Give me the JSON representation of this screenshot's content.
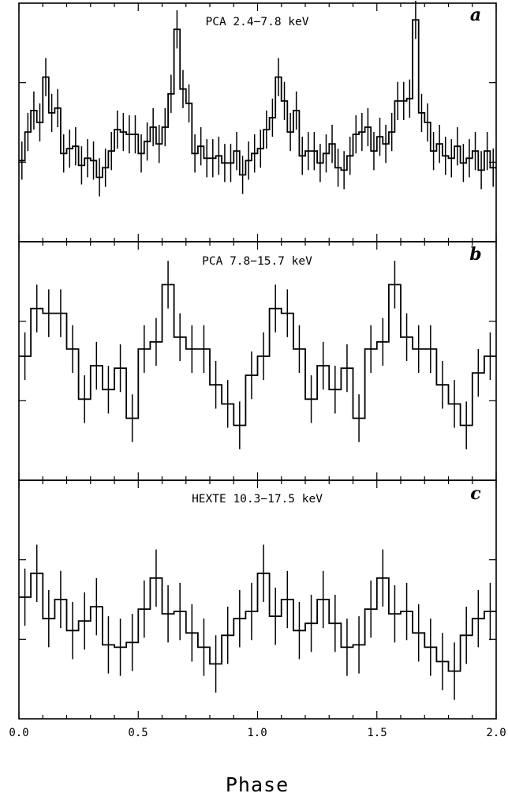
{
  "chart_data": [
    {
      "type": "line",
      "panel_letter": "a",
      "title": "PCA 2.4−7.8 keV",
      "xlim": [
        0.0,
        2.0
      ],
      "ylim": [
        0.0,
        1.0
      ],
      "bin_width": 0.025,
      "x": [
        0.0125,
        0.0375,
        0.0625,
        0.0875,
        0.1125,
        0.1375,
        0.1625,
        0.1875,
        0.2125,
        0.2375,
        0.2625,
        0.2875,
        0.3125,
        0.3375,
        0.3625,
        0.3875,
        0.4125,
        0.4375,
        0.4625,
        0.4875,
        0.5125,
        0.5375,
        0.5625,
        0.5875,
        0.6125,
        0.6375,
        0.6625,
        0.6875,
        0.7125,
        0.7375,
        0.7625,
        0.7875,
        0.8125,
        0.8375,
        0.8625,
        0.8875,
        0.9125,
        0.9375,
        0.9625,
        0.9875,
        1.0125,
        1.0375,
        1.0625,
        1.0875,
        1.1125,
        1.1375,
        1.1625,
        1.1875,
        1.2125,
        1.2375,
        1.2625,
        1.2875,
        1.3125,
        1.3375,
        1.3625,
        1.3875,
        1.4125,
        1.4375,
        1.4625,
        1.4875,
        1.5125,
        1.5375,
        1.5625,
        1.5875,
        1.6125,
        1.6375,
        1.6625,
        1.6875,
        1.7125,
        1.7375,
        1.7625,
        1.7875,
        1.8125,
        1.8375,
        1.8625,
        1.8875,
        1.9125,
        1.9375,
        1.9625,
        1.9875
      ],
      "y": [
        0.34,
        0.46,
        0.55,
        0.5,
        0.69,
        0.54,
        0.56,
        0.37,
        0.39,
        0.4,
        0.32,
        0.35,
        0.34,
        0.27,
        0.31,
        0.38,
        0.47,
        0.46,
        0.45,
        0.45,
        0.37,
        0.42,
        0.48,
        0.41,
        0.48,
        0.62,
        0.89,
        0.64,
        0.58,
        0.37,
        0.4,
        0.35,
        0.35,
        0.36,
        0.33,
        0.33,
        0.38,
        0.28,
        0.34,
        0.37,
        0.39,
        0.47,
        0.52,
        0.69,
        0.59,
        0.46,
        0.55,
        0.36,
        0.38,
        0.38,
        0.33,
        0.37,
        0.41,
        0.31,
        0.3,
        0.36,
        0.45,
        0.46,
        0.48,
        0.38,
        0.44,
        0.41,
        0.46,
        0.59,
        0.59,
        0.6,
        0.93,
        0.54,
        0.5,
        0.38,
        0.41,
        0.36,
        0.35,
        0.4,
        0.33,
        0.35,
        0.38,
        0.3,
        0.38,
        0.31
      ],
      "yerr": [
        0.08,
        0.08,
        0.08,
        0.08,
        0.08,
        0.08,
        0.08,
        0.08,
        0.08,
        0.08,
        0.08,
        0.08,
        0.08,
        0.08,
        0.08,
        0.08,
        0.08,
        0.08,
        0.08,
        0.08,
        0.08,
        0.08,
        0.08,
        0.08,
        0.08,
        0.08,
        0.08,
        0.08,
        0.08,
        0.08,
        0.08,
        0.08,
        0.08,
        0.08,
        0.08,
        0.08,
        0.08,
        0.08,
        0.08,
        0.08,
        0.08,
        0.08,
        0.08,
        0.08,
        0.08,
        0.08,
        0.08,
        0.08,
        0.08,
        0.08,
        0.08,
        0.08,
        0.08,
        0.08,
        0.08,
        0.08,
        0.08,
        0.08,
        0.08,
        0.08,
        0.08,
        0.08,
        0.08,
        0.08,
        0.08,
        0.08,
        0.08,
        0.08,
        0.08,
        0.08,
        0.08,
        0.08,
        0.08,
        0.08,
        0.08,
        0.08,
        0.08,
        0.08,
        0.08,
        0.08
      ]
    },
    {
      "type": "line",
      "panel_letter": "b",
      "title": "PCA 7.8−15.7 keV",
      "xlim": [
        0.0,
        2.0
      ],
      "ylim": [
        0.0,
        1.0
      ],
      "bin_width": 0.05,
      "x": [
        0.025,
        0.075,
        0.125,
        0.175,
        0.225,
        0.275,
        0.325,
        0.375,
        0.425,
        0.475,
        0.525,
        0.575,
        0.625,
        0.675,
        0.725,
        0.775,
        0.825,
        0.875,
        0.925,
        0.975,
        1.025,
        1.075,
        1.125,
        1.175,
        1.225,
        1.275,
        1.325,
        1.375,
        1.425,
        1.475,
        1.525,
        1.575,
        1.625,
        1.675,
        1.725,
        1.775,
        1.825,
        1.875,
        1.925,
        1.975
      ],
      "y": [
        0.52,
        0.72,
        0.7,
        0.7,
        0.55,
        0.34,
        0.48,
        0.38,
        0.47,
        0.26,
        0.55,
        0.58,
        0.82,
        0.6,
        0.55,
        0.55,
        0.4,
        0.32,
        0.23,
        0.44,
        0.52,
        0.72,
        0.7,
        0.55,
        0.34,
        0.48,
        0.38,
        0.47,
        0.26,
        0.55,
        0.58,
        0.82,
        0.6,
        0.55,
        0.55,
        0.4,
        0.32,
        0.23,
        0.45,
        0.52
      ],
      "yerr": [
        0.1,
        0.1,
        0.1,
        0.1,
        0.1,
        0.1,
        0.1,
        0.1,
        0.1,
        0.1,
        0.1,
        0.1,
        0.1,
        0.1,
        0.1,
        0.1,
        0.1,
        0.1,
        0.1,
        0.1,
        0.1,
        0.1,
        0.1,
        0.1,
        0.1,
        0.1,
        0.1,
        0.1,
        0.1,
        0.1,
        0.1,
        0.1,
        0.1,
        0.1,
        0.1,
        0.1,
        0.1,
        0.1,
        0.1,
        0.1
      ]
    },
    {
      "type": "line",
      "panel_letter": "c",
      "title": "HEXTE 10.3−17.5 keV",
      "xlim": [
        0.0,
        2.0
      ],
      "ylim": [
        0.0,
        1.0
      ],
      "x_ticks": [
        0.0,
        0.5,
        1.0,
        1.5,
        2.0
      ],
      "x_tick_labels": [
        "0.0",
        "0.5",
        "1.0",
        "1.5",
        "2.0"
      ],
      "xlabel": "Phase",
      "bin_width": 0.05,
      "x": [
        0.025,
        0.075,
        0.125,
        0.175,
        0.225,
        0.275,
        0.325,
        0.375,
        0.425,
        0.475,
        0.525,
        0.575,
        0.625,
        0.675,
        0.725,
        0.775,
        0.825,
        0.875,
        0.925,
        0.975,
        1.025,
        1.075,
        1.125,
        1.175,
        1.225,
        1.275,
        1.325,
        1.375,
        1.425,
        1.475,
        1.525,
        1.575,
        1.625,
        1.675,
        1.725,
        1.775,
        1.825,
        1.875,
        1.925,
        1.975
      ],
      "y": [
        0.51,
        0.61,
        0.42,
        0.5,
        0.37,
        0.41,
        0.47,
        0.31,
        0.3,
        0.32,
        0.46,
        0.59,
        0.44,
        0.45,
        0.36,
        0.3,
        0.23,
        0.35,
        0.42,
        0.45,
        0.61,
        0.43,
        0.5,
        0.37,
        0.4,
        0.5,
        0.4,
        0.3,
        0.31,
        0.46,
        0.59,
        0.44,
        0.45,
        0.36,
        0.3,
        0.24,
        0.2,
        0.35,
        0.42,
        0.45
      ],
      "yerr": [
        0.12,
        0.12,
        0.12,
        0.12,
        0.12,
        0.12,
        0.12,
        0.12,
        0.12,
        0.12,
        0.12,
        0.12,
        0.12,
        0.12,
        0.12,
        0.12,
        0.12,
        0.12,
        0.12,
        0.12,
        0.12,
        0.12,
        0.12,
        0.12,
        0.12,
        0.12,
        0.12,
        0.12,
        0.12,
        0.12,
        0.12,
        0.12,
        0.12,
        0.12,
        0.12,
        0.12,
        0.12,
        0.12,
        0.12,
        0.12
      ]
    }
  ]
}
